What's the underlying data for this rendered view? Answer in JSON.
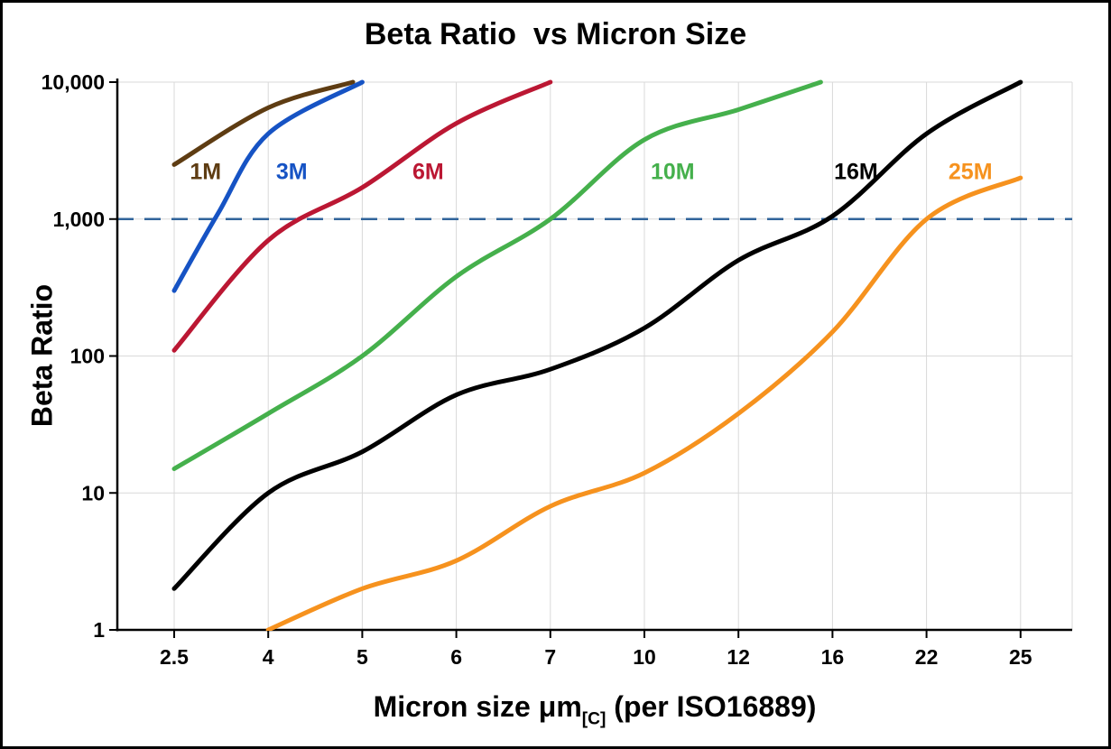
{
  "chart_data": {
    "type": "line",
    "title": "Beta Ratio  vs Micron Size",
    "ylabel": "Beta Ratio",
    "xlabel_parts": {
      "main": "Micron size μm",
      "sub": "[C]",
      "rest": " (per ISO16889)"
    },
    "y_scale": "log",
    "ylim": [
      1,
      10000
    ],
    "grid": true,
    "grid_color": "#d9d9d9",
    "background": "#ffffff",
    "frame_color": "#000000",
    "x_categories": [
      2.5,
      4,
      5,
      6,
      7,
      10,
      12,
      16,
      22,
      25
    ],
    "x_tick_labels": [
      "2.5",
      "4",
      "5",
      "6",
      "7",
      "10",
      "12",
      "16",
      "22",
      "25"
    ],
    "y_ticks": [
      1,
      10,
      100,
      1000,
      10000
    ],
    "y_tick_labels": [
      "1",
      "10",
      "100",
      "1,000",
      "10,000"
    ],
    "reference_line": {
      "y": 1000,
      "color": "#31649b",
      "style": "dashed"
    },
    "series": [
      {
        "name": "1M",
        "color": "#5e3c12",
        "points": [
          [
            2.5,
            2500
          ],
          [
            4,
            6500
          ],
          [
            4.9,
            10000
          ]
        ],
        "label": {
          "x": 3.0,
          "y": 2250
        }
      },
      {
        "name": "3M",
        "color": "#1653c4",
        "points": [
          [
            2.5,
            300
          ],
          [
            3.2,
            1100
          ],
          [
            4,
            4200
          ],
          [
            5,
            10000
          ]
        ],
        "label": {
          "x": 4.25,
          "y": 2250
        }
      },
      {
        "name": "6M",
        "color": "#bb1733",
        "points": [
          [
            2.5,
            110
          ],
          [
            4,
            700
          ],
          [
            5,
            1700
          ],
          [
            6,
            5000
          ],
          [
            7,
            10000
          ]
        ],
        "label": {
          "x": 5.7,
          "y": 2250
        }
      },
      {
        "name": "10M",
        "color": "#45b04c",
        "points": [
          [
            2.5,
            15
          ],
          [
            4,
            38
          ],
          [
            5,
            100
          ],
          [
            6,
            380
          ],
          [
            7,
            1000
          ],
          [
            10,
            3800
          ],
          [
            12,
            6300
          ],
          [
            15.5,
            10000
          ]
        ],
        "label": {
          "x": 10.6,
          "y": 2250
        }
      },
      {
        "name": "16M",
        "color": "#000000",
        "points": [
          [
            2.5,
            2
          ],
          [
            4,
            10
          ],
          [
            5,
            20
          ],
          [
            6,
            52
          ],
          [
            7,
            80
          ],
          [
            10,
            160
          ],
          [
            12,
            500
          ],
          [
            16,
            1050
          ],
          [
            22,
            4200
          ],
          [
            25,
            10000
          ]
        ],
        "label": {
          "x": 17.5,
          "y": 2250
        }
      },
      {
        "name": "25M",
        "color": "#f6921e",
        "points": [
          [
            4,
            1
          ],
          [
            5,
            2
          ],
          [
            6,
            3.2
          ],
          [
            7,
            8
          ],
          [
            10,
            14
          ],
          [
            12,
            38
          ],
          [
            16,
            150
          ],
          [
            22,
            1000
          ],
          [
            25,
            2000
          ]
        ],
        "label": {
          "x": 23.4,
          "y": 2250
        }
      }
    ]
  }
}
